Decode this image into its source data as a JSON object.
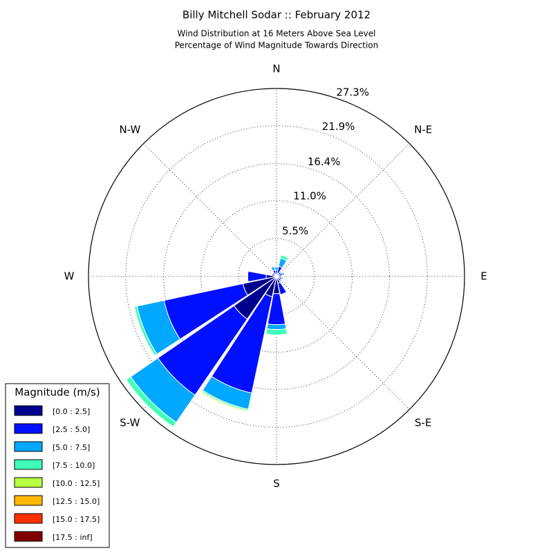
{
  "chart_data": {
    "type": "windrose",
    "title": "Billy Mitchell Sodar :: February 2012",
    "subtitle": [
      "Wind Distribution at 16 Meters Above Sea Level",
      "Percentage of Wind Magnitude Towards Direction"
    ],
    "categories": [
      "N",
      "NNE",
      "NE",
      "ENE",
      "E",
      "ESE",
      "SE",
      "SSE",
      "S",
      "SSW",
      "SW",
      "WSW",
      "W",
      "WNW",
      "NW",
      "NNW"
    ],
    "directions_deg": [
      0,
      22.5,
      45,
      67.5,
      90,
      112.5,
      135,
      157.5,
      180,
      202.5,
      225,
      247.5,
      270,
      292.5,
      315,
      337.5
    ],
    "thetaticks": [
      {
        "value": 0,
        "label": "N"
      },
      {
        "value": 45,
        "label": "N-E"
      },
      {
        "value": 90,
        "label": "E"
      },
      {
        "value": 135,
        "label": "S-E"
      },
      {
        "value": 180,
        "label": "S"
      },
      {
        "value": 225,
        "label": "S-W"
      },
      {
        "value": 270,
        "label": "W"
      },
      {
        "value": 315,
        "label": "N-W"
      }
    ],
    "rlim": [
      0,
      27.3
    ],
    "rticks": [
      {
        "value": 5.5,
        "label": "5.5%"
      },
      {
        "value": 11.0,
        "label": "11.0%"
      },
      {
        "value": 16.4,
        "label": "16.4%"
      },
      {
        "value": 21.9,
        "label": "21.9%"
      },
      {
        "value": 27.3,
        "label": "27.3%"
      }
    ],
    "grid": true,
    "legend_title": "Magnitude (m/s)",
    "legend_position": "lower left",
    "series": [
      {
        "name": "[0.0 : 2.5]",
        "color": "#00008f",
        "values": [
          0.3,
          0.5,
          0.3,
          0.3,
          0.3,
          0.3,
          0.3,
          1.0,
          2.5,
          3.0,
          7.5,
          5.0,
          1.5,
          0.3,
          0.3,
          0.4
        ]
      },
      {
        "name": "[2.5 : 5.0]",
        "color": "#0010ff",
        "values": [
          0.6,
          1.0,
          0.5,
          0.6,
          0.4,
          0.5,
          0.5,
          1.7,
          4.5,
          14.3,
          13.4,
          11.7,
          2.7,
          0.4,
          0.4,
          0.6
        ]
      },
      {
        "name": "[5.0 : 7.5]",
        "color": "#00a8ff",
        "values": [
          0.5,
          1.2,
          0.2,
          0.3,
          0.1,
          0.2,
          0.2,
          0,
          0.7,
          2.4,
          4.8,
          4.0,
          0,
          0.1,
          0.1,
          0.5
        ]
      },
      {
        "name": "[7.5 : 10.0]",
        "color": "#40ffb7",
        "values": [
          0,
          0.5,
          0,
          0,
          0,
          0,
          0,
          0,
          0.8,
          0.2,
          0.8,
          0.4,
          0,
          0,
          0,
          0
        ]
      },
      {
        "name": "[10.0 : 12.5]",
        "color": "#b7ff40",
        "values": [
          0,
          0.1,
          0,
          0,
          0,
          0,
          0,
          0,
          0,
          0.2,
          0.1,
          0.1,
          0,
          0,
          0,
          0
        ]
      },
      {
        "name": "[12.5 : 15.0]",
        "color": "#ffb900",
        "values": [
          0,
          0,
          0,
          0,
          0,
          0,
          0,
          0,
          0,
          0,
          0,
          0,
          0,
          0,
          0,
          0
        ]
      },
      {
        "name": "[15.0 : 17.5]",
        "color": "#ff3000",
        "values": [
          0,
          0,
          0,
          0,
          0,
          0,
          0,
          0,
          0,
          0,
          0,
          0,
          0,
          0,
          0,
          0
        ]
      },
      {
        "name": "[17.5 : inf]",
        "color": "#800000",
        "values": [
          0,
          0,
          0,
          0,
          0,
          0,
          0,
          0,
          0,
          0,
          0,
          0,
          0,
          0,
          0,
          0
        ]
      }
    ]
  }
}
